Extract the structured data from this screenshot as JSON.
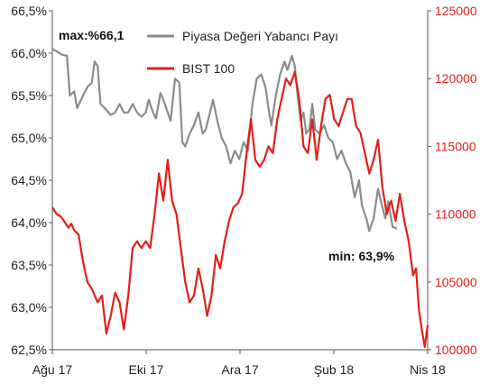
{
  "chart_data": {
    "type": "line",
    "x_axis": {
      "ticks": [
        "Ağu 17",
        "Eki 17",
        "Ara 17",
        "Şub 18",
        "Nis 18"
      ],
      "range": [
        "2017-08-01",
        "2018-04-15"
      ]
    },
    "y_left": {
      "range": [
        62.5,
        66.5
      ],
      "ticks": [
        "62,5%",
        "63,0%",
        "63,5%",
        "64,0%",
        "64,5%",
        "65,0%",
        "65,5%",
        "66,0%",
        "66,5%"
      ],
      "tick_values": [
        62.5,
        63.0,
        63.5,
        64.0,
        64.5,
        65.0,
        65.5,
        66.0,
        66.5
      ]
    },
    "y_right": {
      "range": [
        100000,
        125000
      ],
      "ticks": [
        "100000",
        "105000",
        "110000",
        "115000",
        "120000",
        "125000"
      ],
      "tick_values": [
        100000,
        105000,
        110000,
        115000,
        120000,
        125000
      ],
      "color": "#e0201b"
    },
    "grid": false,
    "legend_position": "top-center",
    "series": [
      {
        "name": "Piyasa Değeri Yabancı Payı",
        "axis": "left",
        "color": "#8c8c8c",
        "points": [
          [
            "2017-08-01",
            66.05
          ],
          [
            "2017-08-04",
            66.02
          ],
          [
            "2017-08-08",
            65.98
          ],
          [
            "2017-08-11",
            65.97
          ],
          [
            "2017-08-13",
            65.5
          ],
          [
            "2017-08-16",
            65.55
          ],
          [
            "2017-08-18",
            65.35
          ],
          [
            "2017-08-22",
            65.5
          ],
          [
            "2017-08-25",
            65.6
          ],
          [
            "2017-08-28",
            65.65
          ],
          [
            "2017-08-30",
            65.9
          ],
          [
            "2017-09-01",
            65.85
          ],
          [
            "2017-09-03",
            65.4
          ],
          [
            "2017-09-06",
            65.35
          ],
          [
            "2017-09-10",
            65.27
          ],
          [
            "2017-09-13",
            65.3
          ],
          [
            "2017-09-16",
            65.4
          ],
          [
            "2017-09-19",
            65.3
          ],
          [
            "2017-09-22",
            65.3
          ],
          [
            "2017-09-25",
            65.4
          ],
          [
            "2017-09-28",
            65.3
          ],
          [
            "2017-10-01",
            65.25
          ],
          [
            "2017-10-04",
            65.3
          ],
          [
            "2017-10-06",
            65.45
          ],
          [
            "2017-10-09",
            65.3
          ],
          [
            "2017-10-11",
            65.23
          ],
          [
            "2017-10-14",
            65.53
          ],
          [
            "2017-10-16",
            65.45
          ],
          [
            "2017-10-19",
            65.3
          ],
          [
            "2017-10-21",
            65.2
          ],
          [
            "2017-10-24",
            65.7
          ],
          [
            "2017-10-27",
            65.65
          ],
          [
            "2017-10-29",
            64.95
          ],
          [
            "2017-10-31",
            64.9
          ],
          [
            "2017-11-03",
            65.05
          ],
          [
            "2017-11-06",
            65.15
          ],
          [
            "2017-11-09",
            65.3
          ],
          [
            "2017-11-12",
            65.05
          ],
          [
            "2017-11-14",
            65.1
          ],
          [
            "2017-11-17",
            65.3
          ],
          [
            "2017-11-19",
            65.45
          ],
          [
            "2017-11-22",
            65.2
          ],
          [
            "2017-11-25",
            65.0
          ],
          [
            "2017-11-28",
            64.9
          ],
          [
            "2017-12-01",
            64.7
          ],
          [
            "2017-12-04",
            64.85
          ],
          [
            "2017-12-07",
            64.75
          ],
          [
            "2017-12-10",
            64.95
          ],
          [
            "2017-12-13",
            64.85
          ],
          [
            "2017-12-16",
            65.4
          ],
          [
            "2017-12-19",
            65.7
          ],
          [
            "2017-12-22",
            65.75
          ],
          [
            "2017-12-25",
            65.6
          ],
          [
            "2017-12-27",
            65.35
          ],
          [
            "2017-12-29",
            65.15
          ],
          [
            "2018-01-01",
            65.5
          ],
          [
            "2018-01-04",
            65.75
          ],
          [
            "2018-01-07",
            65.9
          ],
          [
            "2018-01-09",
            65.8
          ],
          [
            "2018-01-12",
            65.97
          ],
          [
            "2018-01-14",
            65.85
          ],
          [
            "2018-01-16",
            65.5
          ],
          [
            "2018-01-18",
            65.2
          ],
          [
            "2018-01-20",
            65.3
          ],
          [
            "2018-01-22",
            65.05
          ],
          [
            "2018-01-24",
            65.1
          ],
          [
            "2018-01-26",
            65.4
          ],
          [
            "2018-01-28",
            65.1
          ],
          [
            "2018-01-31",
            65.05
          ],
          [
            "2018-02-03",
            65.15
          ],
          [
            "2018-02-06",
            65.0
          ],
          [
            "2018-02-09",
            64.95
          ],
          [
            "2018-02-12",
            64.75
          ],
          [
            "2018-02-15",
            64.85
          ],
          [
            "2018-02-18",
            64.7
          ],
          [
            "2018-02-21",
            64.6
          ],
          [
            "2018-02-24",
            64.3
          ],
          [
            "2018-02-27",
            64.5
          ],
          [
            "2018-03-01",
            64.2
          ],
          [
            "2018-03-04",
            64.05
          ],
          [
            "2018-03-06",
            63.9
          ],
          [
            "2018-03-09",
            64.05
          ],
          [
            "2018-03-12",
            64.4
          ],
          [
            "2018-03-14",
            64.25
          ],
          [
            "2018-03-17",
            64.05
          ],
          [
            "2018-03-19",
            64.25
          ],
          [
            "2018-03-22",
            63.95
          ],
          [
            "2018-03-25",
            63.93
          ]
        ]
      },
      {
        "name": "BIST 100",
        "axis": "right",
        "color": "#e0201b",
        "points": [
          [
            "2017-08-01",
            110500
          ],
          [
            "2017-08-04",
            110000
          ],
          [
            "2017-08-07",
            109800
          ],
          [
            "2017-08-09",
            109500
          ],
          [
            "2017-08-12",
            109000
          ],
          [
            "2017-08-14",
            109300
          ],
          [
            "2017-08-16",
            108800
          ],
          [
            "2017-08-19",
            108500
          ],
          [
            "2017-08-22",
            106500
          ],
          [
            "2017-08-25",
            105000
          ],
          [
            "2017-08-28",
            104500
          ],
          [
            "2017-09-01",
            103500
          ],
          [
            "2017-09-04",
            104000
          ],
          [
            "2017-09-07",
            101200
          ],
          [
            "2017-09-10",
            102500
          ],
          [
            "2017-09-13",
            104200
          ],
          [
            "2017-09-16",
            103500
          ],
          [
            "2017-09-19",
            101500
          ],
          [
            "2017-09-22",
            104000
          ],
          [
            "2017-09-25",
            107500
          ],
          [
            "2017-09-28",
            108000
          ],
          [
            "2017-10-01",
            107500
          ],
          [
            "2017-10-04",
            108000
          ],
          [
            "2017-10-07",
            107500
          ],
          [
            "2017-10-10",
            110000
          ],
          [
            "2017-10-13",
            113000
          ],
          [
            "2017-10-16",
            111000
          ],
          [
            "2017-10-19",
            114000
          ],
          [
            "2017-10-22",
            111000
          ],
          [
            "2017-10-25",
            110000
          ],
          [
            "2017-10-28",
            107500
          ],
          [
            "2017-10-31",
            105000
          ],
          [
            "2017-11-03",
            103500
          ],
          [
            "2017-11-06",
            104000
          ],
          [
            "2017-11-09",
            106000
          ],
          [
            "2017-11-12",
            104500
          ],
          [
            "2017-11-15",
            102500
          ],
          [
            "2017-11-18",
            104000
          ],
          [
            "2017-11-21",
            107000
          ],
          [
            "2017-11-24",
            106000
          ],
          [
            "2017-11-27",
            108000
          ],
          [
            "2017-11-30",
            109500
          ],
          [
            "2017-12-03",
            110500
          ],
          [
            "2017-12-06",
            110800
          ],
          [
            "2017-12-09",
            111500
          ],
          [
            "2017-12-12",
            114500
          ],
          [
            "2017-12-15",
            117000
          ],
          [
            "2017-12-18",
            114000
          ],
          [
            "2017-12-21",
            113500
          ],
          [
            "2017-12-24",
            114000
          ],
          [
            "2017-12-27",
            115000
          ],
          [
            "2017-12-30",
            114500
          ],
          [
            "2018-01-02",
            117000
          ],
          [
            "2018-01-05",
            118500
          ],
          [
            "2018-01-08",
            120000
          ],
          [
            "2018-01-11",
            119500
          ],
          [
            "2018-01-14",
            120500
          ],
          [
            "2018-01-17",
            118500
          ],
          [
            "2018-01-20",
            115000
          ],
          [
            "2018-01-23",
            114500
          ],
          [
            "2018-01-26",
            117000
          ],
          [
            "2018-01-29",
            114000
          ],
          [
            "2018-02-01",
            116500
          ],
          [
            "2018-02-04",
            118500
          ],
          [
            "2018-02-07",
            118800
          ],
          [
            "2018-02-10",
            117000
          ],
          [
            "2018-02-13",
            116500
          ],
          [
            "2018-02-16",
            117500
          ],
          [
            "2018-02-19",
            118500
          ],
          [
            "2018-02-22",
            118500
          ],
          [
            "2018-02-25",
            116500
          ],
          [
            "2018-02-28",
            116000
          ],
          [
            "2018-03-03",
            114500
          ],
          [
            "2018-03-06",
            113000
          ],
          [
            "2018-03-09",
            114000
          ],
          [
            "2018-03-12",
            115500
          ],
          [
            "2018-03-15",
            112000
          ],
          [
            "2018-03-18",
            110000
          ],
          [
            "2018-03-21",
            111000
          ],
          [
            "2018-03-24",
            109500
          ],
          [
            "2018-03-27",
            111500
          ],
          [
            "2018-03-30",
            109500
          ],
          [
            "2018-04-02",
            108000
          ],
          [
            "2018-04-05",
            105500
          ],
          [
            "2018-04-07",
            106000
          ],
          [
            "2018-04-09",
            103000
          ],
          [
            "2018-04-11",
            101500
          ],
          [
            "2018-04-13",
            100200
          ],
          [
            "2018-04-15",
            101800
          ]
        ]
      }
    ],
    "annotations": [
      {
        "text": "max:%66,1",
        "position": "top-left"
      },
      {
        "text": "min: 63,9%",
        "position": "near-last-grey-point"
      }
    ]
  }
}
